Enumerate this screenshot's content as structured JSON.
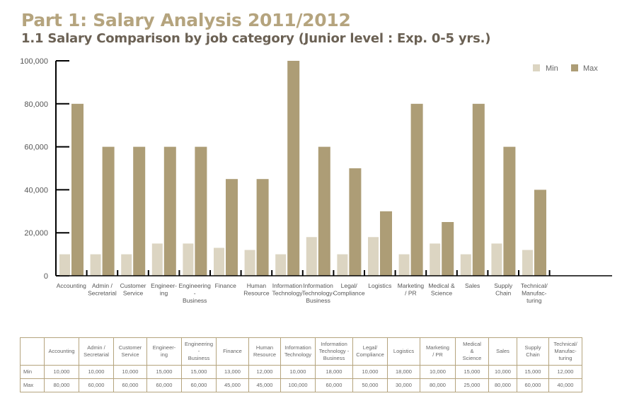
{
  "header": {
    "title": "Part 1: Salary Analysis 2011/2012",
    "subtitle": "1.1 Salary Comparison by job category (Junior level : Exp. 0-5 yrs.)"
  },
  "colors": {
    "min": "#dcd5c2",
    "max": "#ad9d76",
    "title": "#b5a47e",
    "axis": "#000000"
  },
  "chart_data": {
    "type": "bar",
    "title": "",
    "xlabel": "",
    "ylabel": "",
    "ylim": [
      0,
      100000
    ],
    "yticks": [
      0,
      20000,
      40000,
      60000,
      80000,
      100000
    ],
    "ytick_labels": [
      "0",
      "20,000",
      "40,000",
      "60,000",
      "80,000",
      "100,000"
    ],
    "grid": false,
    "legend_position": "top-right",
    "categories": [
      "Accounting",
      "Admin / Secretarial",
      "Customer Service",
      "Engineer- ing",
      "Engineering - Business",
      "Finance",
      "Human Resource",
      "Information Technology",
      "Information Technology- Business",
      "Legal/ Compliance",
      "Logistics",
      "Marketing / PR",
      "Medical & Science",
      "Sales",
      "Supply Chain",
      "Technical/ Manufac- turing"
    ],
    "category_label_lines": [
      [
        "Accounting"
      ],
      [
        "Admin /",
        "Secretarial"
      ],
      [
        "Customer",
        "Service"
      ],
      [
        "Engineer-",
        "ing"
      ],
      [
        "Engineering",
        "-",
        "Business"
      ],
      [
        "Finance"
      ],
      [
        "Human",
        "Resource"
      ],
      [
        "Information",
        "Technology"
      ],
      [
        "Information",
        "Technology-",
        "Business"
      ],
      [
        "Legal/",
        "Compliance"
      ],
      [
        "Logistics"
      ],
      [
        "Marketing",
        "/ PR"
      ],
      [
        "Medical &",
        "Science"
      ],
      [
        "Sales"
      ],
      [
        "Supply",
        "Chain"
      ],
      [
        "Technical/",
        "Manufac-",
        "turing"
      ]
    ],
    "series": [
      {
        "name": "Min",
        "values": [
          10000,
          10000,
          10000,
          15000,
          15000,
          13000,
          12000,
          10000,
          18000,
          10000,
          18000,
          10000,
          15000,
          10000,
          15000,
          12000
        ]
      },
      {
        "name": "Max",
        "values": [
          80000,
          60000,
          60000,
          60000,
          60000,
          45000,
          45000,
          100000,
          60000,
          50000,
          30000,
          80000,
          25000,
          80000,
          60000,
          40000
        ]
      }
    ]
  },
  "table": {
    "headers": [
      [
        "Accounting"
      ],
      [
        "Admin /",
        "Secretarial"
      ],
      [
        "Customer",
        "Service"
      ],
      [
        "Engineer-",
        "ing"
      ],
      [
        "Engineering",
        "-",
        "Business"
      ],
      [
        "Finance"
      ],
      [
        "Human",
        "Resource"
      ],
      [
        "Information",
        "Technology"
      ],
      [
        "Information",
        "Technology -",
        "Business"
      ],
      [
        "Legal/",
        "Compliance"
      ],
      [
        "Logistics"
      ],
      [
        "Marketing",
        "/ PR"
      ],
      [
        "Medical",
        "&",
        "Science"
      ],
      [
        "Sales"
      ],
      [
        "Supply",
        "Chain"
      ],
      [
        "Technical/",
        "Manufac-",
        "turing"
      ]
    ],
    "rows": [
      {
        "label": "Min",
        "values": [
          "10,000",
          "10,000",
          "10,000",
          "15,000",
          "15,000",
          "13,000",
          "12,000",
          "10,000",
          "18,000",
          "10,000",
          "18,000",
          "10,000",
          "15,000",
          "10,000",
          "15,000",
          "12,000"
        ]
      },
      {
        "label": "Max",
        "values": [
          "80,000",
          "60,000",
          "60,000",
          "60,000",
          "60,000",
          "45,000",
          "45,000",
          "100,000",
          "60,000",
          "50,000",
          "30,000",
          "80,000",
          "25,000",
          "80,000",
          "60,000",
          "40,000"
        ]
      }
    ]
  }
}
